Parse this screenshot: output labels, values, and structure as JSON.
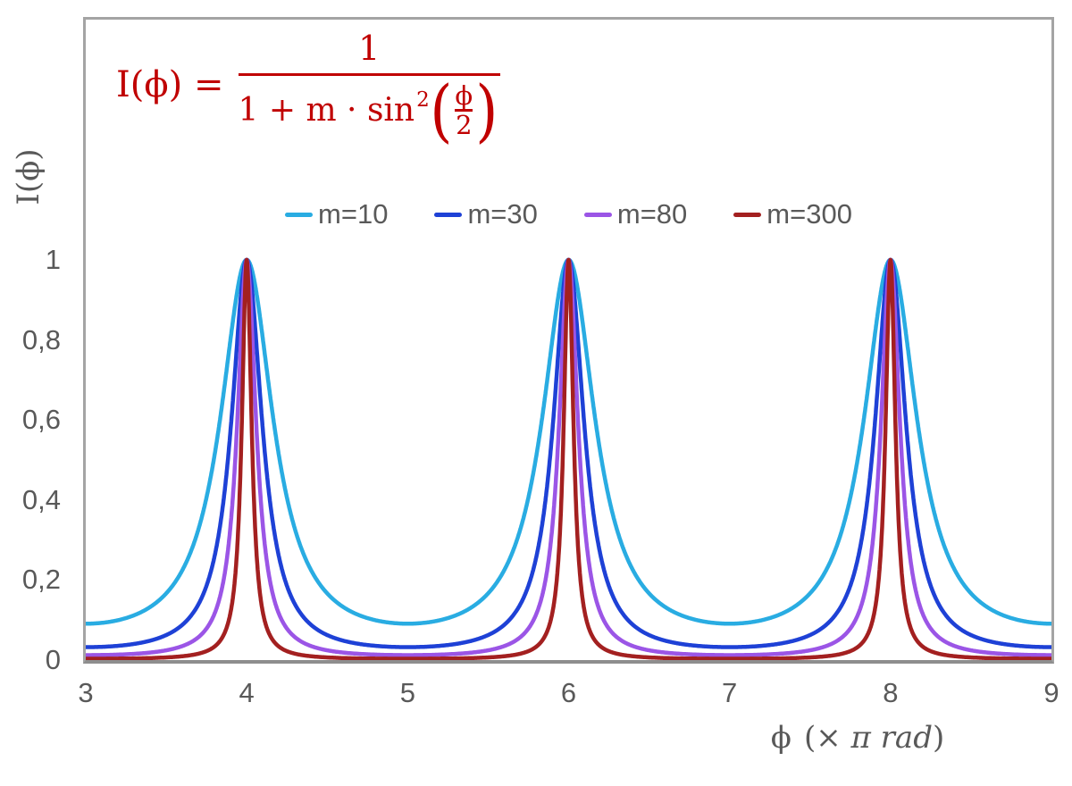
{
  "chart_data": {
    "type": "line",
    "formula_text": "I(ϕ) = 1 / (1 + m · sin²(ϕ/2))",
    "function": "I(x) = 1 / (1 + m · sin²(π·x/2)) with x in units of π rad",
    "xlabel": "ϕ (× π rad)",
    "ylabel": "I(ϕ)",
    "xlim": [
      3,
      9
    ],
    "ylim": [
      0,
      1.6
    ],
    "grid": false,
    "legend_position": "top-center",
    "peaks_at_x": [
      4,
      6,
      8
    ],
    "peak_value": 1,
    "x_ticks": [
      {
        "label": "3",
        "value": 3
      },
      {
        "label": "4",
        "value": 4
      },
      {
        "label": "5",
        "value": 5
      },
      {
        "label": "6",
        "value": 6
      },
      {
        "label": "7",
        "value": 7
      },
      {
        "label": "8",
        "value": 8
      },
      {
        "label": "9",
        "value": 9
      }
    ],
    "y_ticks": [
      {
        "label": "1",
        "value": 1
      },
      {
        "label": "0,8",
        "value": 0.8
      },
      {
        "label": "0,6",
        "value": 0.6
      },
      {
        "label": "0,4",
        "value": 0.4
      },
      {
        "label": "0,2",
        "value": 0.2
      },
      {
        "label": "0",
        "value": 0
      }
    ],
    "series": [
      {
        "name": "m=10",
        "m": 10,
        "color": "#29ace2",
        "min_value": 0.0909
      },
      {
        "name": "m=30",
        "m": 30,
        "color": "#1e41d6",
        "min_value": 0.0323
      },
      {
        "name": "m=80",
        "m": 80,
        "color": "#9b55e6",
        "min_value": 0.0123
      },
      {
        "name": "m=300",
        "m": 300,
        "color": "#a32020",
        "min_value": 0.0033
      }
    ]
  },
  "formula": {
    "lhs": "I(ϕ) =",
    "numerator": "1",
    "den_prefix": "1 + m · sin",
    "den_exponent": "2",
    "paren_open": "(",
    "paren_close": ")",
    "inner_numerator": "ϕ",
    "inner_denominator": "2",
    "color": "#c00000"
  },
  "axis_titles": {
    "y": "I(ϕ)",
    "x_phi": "ϕ",
    "x_open": "(×",
    "x_italic": "π rad",
    "x_close": ")"
  },
  "colors": {
    "text_gray": "#595959",
    "frame_gray": "#a4a4a4",
    "axis_line_gray": "#8e8e8e",
    "formula_red": "#c00000"
  }
}
